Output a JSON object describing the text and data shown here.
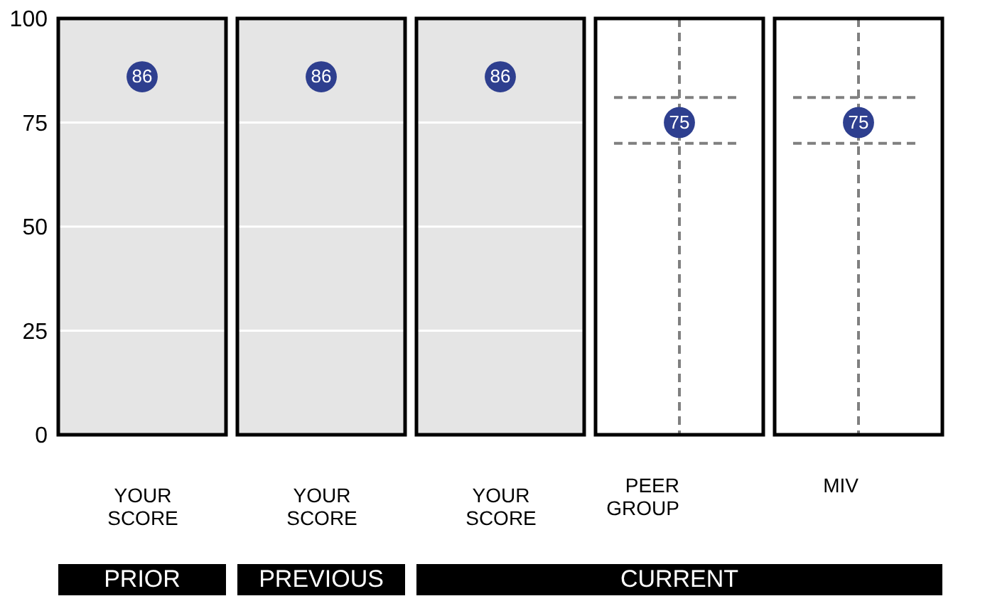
{
  "chart_data": [
    {
      "type": "scatter",
      "categories": [
        "YOUR SCORE"
      ],
      "values": [
        86
      ],
      "color": "#2e3f8f",
      "data_labels": true,
      "ylim": [
        0,
        100
      ],
      "yticks": [
        0,
        25,
        50,
        75,
        100
      ],
      "grid": "y",
      "marker": "circle",
      "bands": [
        {
          "axis": "y",
          "from": 0,
          "to": 100,
          "color": "#e5e5e5"
        }
      ],
      "annotations": [
        "PRIOR"
      ]
    },
    {
      "type": "scatter",
      "categories": [
        "YOUR SCORE"
      ],
      "values": [
        86
      ],
      "color": "#2e3f8f",
      "data_labels": true,
      "ylim": [
        0,
        100
      ],
      "yticks": [
        0,
        25,
        50,
        75,
        100
      ],
      "grid": "y",
      "marker": "circle",
      "tick_labels": "x",
      "bands": [
        {
          "axis": "y",
          "from": 0,
          "to": 100,
          "color": "#e5e5e5"
        }
      ],
      "annotations": [
        "PREVIOUS"
      ]
    },
    {
      "type": "scatter",
      "categories": [
        "YOUR SCORE"
      ],
      "values": [
        86
      ],
      "color": "#2e3f8f",
      "data_labels": true,
      "ylim": [
        0,
        100
      ],
      "yticks": [
        0,
        25,
        50,
        75,
        100
      ],
      "grid": "y",
      "marker": "circle",
      "tick_labels": "x",
      "bands": [
        {
          "axis": "y",
          "from": 0,
          "to": 100,
          "color": "#e5e5e5"
        }
      ]
    },
    {
      "type": "scatter",
      "categories": [
        "PEER GROUP"
      ],
      "values": [
        75
      ],
      "color": "#2e3f8f",
      "data_labels": true,
      "ylim": [
        0,
        100
      ],
      "yticks": [
        0,
        25,
        50,
        75,
        100
      ],
      "marker": "circle",
      "tick_labels": "x",
      "ref_lines": [
        {
          "axis": "x",
          "value": "PEER GROUP",
          "color": "#808080",
          "line_style": "dashed"
        },
        {
          "axis": "y",
          "value": 81,
          "color": "#808080",
          "line_style": "dashed"
        },
        {
          "axis": "y",
          "value": 70,
          "color": "#808080",
          "line_style": "dashed"
        }
      ],
      "annotations": [
        "CURRENT"
      ]
    },
    {
      "type": "scatter",
      "categories": [
        "MIV"
      ],
      "values": [
        75
      ],
      "color": "#2e3f8f",
      "data_labels": true,
      "ylim": [
        0,
        100
      ],
      "yticks": [
        0,
        25,
        50,
        75,
        100
      ],
      "marker": "circle",
      "tick_labels": "x",
      "ref_lines": [
        {
          "axis": "x",
          "value": "MIV",
          "color": "#808080",
          "line_style": "dashed"
        },
        {
          "axis": "y",
          "value": 81,
          "color": "#808080",
          "line_style": "dashed"
        },
        {
          "axis": "y",
          "value": 70,
          "color": "#808080",
          "line_style": "dashed"
        }
      ]
    }
  ]
}
